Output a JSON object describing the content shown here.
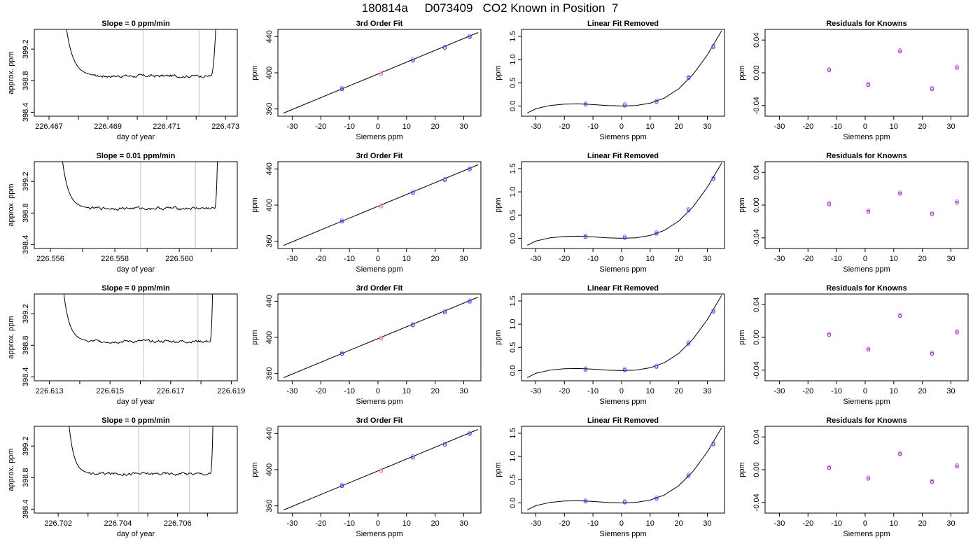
{
  "header": {
    "title": "180814a     D073409   CO2 Known in Position  7"
  },
  "chart_data": [
    {
      "type": "line",
      "panel": "timeseries",
      "title": "Slope =  0  ppm/min",
      "xlabel": "day of year",
      "ylabel": "approx. ppm",
      "xlim": [
        226.4665,
        226.4734
      ],
      "ylim": [
        398.35,
        399.45
      ],
      "xticks": [
        "226.467",
        "226.469",
        "226.471",
        "226.473"
      ],
      "xtick_values": [
        226.467,
        226.469,
        226.471,
        226.473
      ],
      "xminor": [
        226.468,
        226.47,
        226.472
      ],
      "yticks": [
        "398.4",
        "398.8",
        "399.2"
      ],
      "ytick_values": [
        398.4,
        398.8,
        399.2
      ],
      "vlines": [
        226.4702,
        226.4721
      ],
      "rise_start": 226.4675,
      "plateau_start": 226.4685,
      "plateau_end": 226.4725,
      "rise_end": 226.4727,
      "baseline": 398.86
    },
    {
      "type": "scatter",
      "panel": "fit",
      "title": "3rd Order Fit",
      "xlabel": "Siemens ppm",
      "ylabel": "ppm",
      "xlim": [
        -35,
        36
      ],
      "ylim": [
        352,
        448
      ],
      "xticks": [
        "-30",
        "-20",
        "-10",
        "0",
        "10",
        "20",
        "30"
      ],
      "xtick_values": [
        -30,
        -20,
        -10,
        0,
        10,
        20,
        30
      ],
      "yticks": [
        "360",
        "400",
        "440"
      ],
      "ytick_values": [
        360,
        400,
        440
      ],
      "points": [
        [
          -12.6,
          381.8
        ],
        [
          1.1,
          398.5
        ],
        [
          12.2,
          413.4
        ],
        [
          23.4,
          427.6
        ],
        [
          32.1,
          439.5
        ]
      ],
      "point_colors": [
        "#4040ff",
        "#ff66cc",
        "#4040ff",
        "#4040ff",
        "#4040ff"
      ],
      "line": [
        [
          -33,
          355.5
        ],
        [
          35,
          444.5
        ]
      ]
    },
    {
      "type": "scatter",
      "panel": "linear_removed",
      "title": "Linear Fit Removed",
      "xlabel": "Siemens ppm",
      "ylabel": "ppm",
      "xlim": [
        -35,
        36
      ],
      "ylim": [
        -0.22,
        1.65
      ],
      "xticks": [
        "-30",
        "-20",
        "-10",
        "0",
        "10",
        "20",
        "30"
      ],
      "xtick_values": [
        -30,
        -20,
        -10,
        0,
        10,
        20,
        30
      ],
      "yticks": [
        "0.0",
        "0.5",
        "1.0",
        "1.5"
      ],
      "ytick_values": [
        0,
        0.5,
        1.0,
        1.5
      ],
      "points": [
        [
          -12.6,
          0.03
        ],
        [
          1.1,
          0.01
        ],
        [
          12.2,
          0.09
        ],
        [
          23.4,
          0.6
        ],
        [
          32.1,
          1.27
        ]
      ],
      "curve": [
        [
          -33,
          -0.15
        ],
        [
          -30,
          -0.06
        ],
        [
          -25,
          0.01
        ],
        [
          -20,
          0.04
        ],
        [
          -15,
          0.045
        ],
        [
          -10,
          0.03
        ],
        [
          -5,
          0.01
        ],
        [
          0,
          0.0
        ],
        [
          5,
          0.01
        ],
        [
          10,
          0.06
        ],
        [
          15,
          0.17
        ],
        [
          20,
          0.37
        ],
        [
          25,
          0.68
        ],
        [
          30,
          1.1
        ],
        [
          35,
          1.62
        ]
      ]
    },
    {
      "type": "scatter",
      "panel": "residuals",
      "title": "Residuals for Knowns",
      "xlabel": "Siemens ppm",
      "ylabel": "ppm",
      "xlim": [
        -35,
        36
      ],
      "ylim": [
        -0.053,
        0.053
      ],
      "xticks": [
        "-30",
        "-20",
        "-10",
        "0",
        "10",
        "20",
        "30"
      ],
      "xtick_values": [
        -30,
        -20,
        -10,
        0,
        10,
        20,
        30
      ],
      "yticks": [
        "-0.04",
        "0.00",
        "0.04"
      ],
      "ytick_values": [
        -0.04,
        0,
        0.04
      ],
      "points": [
        [
          -12.6,
          0.003
        ],
        [
          1.1,
          -0.015
        ],
        [
          12.2,
          0.026
        ],
        [
          23.4,
          -0.02
        ],
        [
          32.1,
          0.006
        ]
      ]
    },
    {
      "type": "line",
      "panel": "timeseries",
      "title": "Slope =  0.01  ppm/min",
      "xlabel": "day of year",
      "ylabel": "approx. ppm",
      "xlim": [
        226.5555,
        226.5618
      ],
      "ylim": [
        398.35,
        399.45
      ],
      "xticks": [
        "226.556",
        "226.558",
        "226.560"
      ],
      "xtick_values": [
        226.556,
        226.558,
        226.56
      ],
      "xminor": [
        226.557,
        226.559,
        226.561
      ],
      "yticks": [
        "398.4",
        "398.8",
        "399.2"
      ],
      "ytick_values": [
        398.4,
        398.8,
        399.2
      ],
      "vlines": [
        226.5588,
        226.5605
      ],
      "rise_start": 226.5563,
      "plateau_start": 226.5571,
      "plateau_end": 226.5611,
      "rise_end": 226.5612,
      "baseline": 398.86
    },
    {
      "type": "scatter",
      "panel": "fit",
      "title": "3rd Order Fit",
      "xlabel": "Siemens ppm",
      "ylabel": "ppm",
      "xlim": [
        -35,
        36
      ],
      "ylim": [
        352,
        448
      ],
      "xticks": [
        "-30",
        "-20",
        "-10",
        "0",
        "10",
        "20",
        "30"
      ],
      "xtick_values": [
        -30,
        -20,
        -10,
        0,
        10,
        20,
        30
      ],
      "yticks": [
        "360",
        "400",
        "440"
      ],
      "ytick_values": [
        360,
        400,
        440
      ],
      "points": [
        [
          -12.6,
          381.8
        ],
        [
          1.1,
          398.5
        ],
        [
          12.2,
          413.4
        ],
        [
          23.4,
          427.6
        ],
        [
          32.1,
          439.5
        ]
      ],
      "point_colors": [
        "#4040ff",
        "#ff66cc",
        "#4040ff",
        "#4040ff",
        "#4040ff"
      ],
      "line": [
        [
          -33,
          355.5
        ],
        [
          35,
          444.5
        ]
      ]
    },
    {
      "type": "scatter",
      "panel": "linear_removed",
      "title": "Linear Fit Removed",
      "xlabel": "Siemens ppm",
      "ylabel": "ppm",
      "xlim": [
        -35,
        36
      ],
      "ylim": [
        -0.22,
        1.65
      ],
      "xticks": [
        "-30",
        "-20",
        "-10",
        "0",
        "10",
        "20",
        "30"
      ],
      "xtick_values": [
        -30,
        -20,
        -10,
        0,
        10,
        20,
        30
      ],
      "yticks": [
        "0.0",
        "0.5",
        "1.0",
        "1.5"
      ],
      "ytick_values": [
        0,
        0.5,
        1.0,
        1.5
      ],
      "points": [
        [
          -12.6,
          0.03
        ],
        [
          1.1,
          0.01
        ],
        [
          12.2,
          0.1
        ],
        [
          23.4,
          0.6
        ],
        [
          32.1,
          1.28
        ]
      ],
      "curve": [
        [
          -33,
          -0.15
        ],
        [
          -30,
          -0.06
        ],
        [
          -25,
          0.01
        ],
        [
          -20,
          0.04
        ],
        [
          -15,
          0.045
        ],
        [
          -10,
          0.03
        ],
        [
          -5,
          0.01
        ],
        [
          0,
          0.0
        ],
        [
          5,
          0.01
        ],
        [
          10,
          0.06
        ],
        [
          15,
          0.17
        ],
        [
          20,
          0.37
        ],
        [
          25,
          0.68
        ],
        [
          30,
          1.1
        ],
        [
          35,
          1.62
        ]
      ]
    },
    {
      "type": "scatter",
      "panel": "residuals",
      "title": "Residuals for Knowns",
      "xlabel": "Siemens ppm",
      "ylabel": "ppm",
      "xlim": [
        -35,
        36
      ],
      "ylim": [
        -0.053,
        0.053
      ],
      "xticks": [
        "-30",
        "-20",
        "-10",
        "0",
        "10",
        "20",
        "30"
      ],
      "xtick_values": [
        -30,
        -20,
        -10,
        0,
        10,
        20,
        30
      ],
      "yticks": [
        "-0.04",
        "0.00",
        "0.04"
      ],
      "ytick_values": [
        -0.04,
        0,
        0.04
      ],
      "points": [
        [
          -12.6,
          0.001
        ],
        [
          1.1,
          -0.008
        ],
        [
          12.2,
          0.014
        ],
        [
          23.4,
          -0.011
        ],
        [
          32.1,
          0.003
        ]
      ]
    },
    {
      "type": "line",
      "panel": "timeseries",
      "title": "Slope =  0  ppm/min",
      "xlabel": "day of year",
      "ylabel": "approx. ppm",
      "xlim": [
        226.6125,
        226.6192
      ],
      "ylim": [
        398.35,
        399.45
      ],
      "xticks": [
        "226.613",
        "226.615",
        "226.617",
        "226.619"
      ],
      "xtick_values": [
        226.613,
        226.615,
        226.617,
        226.619
      ],
      "xminor": [
        226.614,
        226.616,
        226.618
      ],
      "yticks": [
        "398.4",
        "398.8",
        "399.2"
      ],
      "ytick_values": [
        398.4,
        398.8,
        399.2
      ],
      "vlines": [
        226.6161,
        226.6179
      ],
      "rise_start": 226.6134,
      "plateau_start": 226.6142,
      "plateau_end": 226.6183,
      "rise_end": 226.6184,
      "baseline": 398.85
    },
    {
      "type": "scatter",
      "panel": "fit",
      "title": "3rd Order Fit",
      "xlabel": "Siemens ppm",
      "ylabel": "ppm",
      "xlim": [
        -35,
        36
      ],
      "ylim": [
        352,
        448
      ],
      "xticks": [
        "-30",
        "-20",
        "-10",
        "0",
        "10",
        "20",
        "30"
      ],
      "xtick_values": [
        -30,
        -20,
        -10,
        0,
        10,
        20,
        30
      ],
      "yticks": [
        "360",
        "400",
        "440"
      ],
      "ytick_values": [
        360,
        400,
        440
      ],
      "points": [
        [
          -12.6,
          381.8
        ],
        [
          1.1,
          398.5
        ],
        [
          12.2,
          413.4
        ],
        [
          23.4,
          427.6
        ],
        [
          32.1,
          439.5
        ]
      ],
      "point_colors": [
        "#4040ff",
        "#ff66cc",
        "#4040ff",
        "#4040ff",
        "#4040ff"
      ],
      "line": [
        [
          -33,
          355.5
        ],
        [
          35,
          444.5
        ]
      ]
    },
    {
      "type": "scatter",
      "panel": "linear_removed",
      "title": "Linear Fit Removed",
      "xlabel": "Siemens ppm",
      "ylabel": "ppm",
      "xlim": [
        -35,
        36
      ],
      "ylim": [
        -0.22,
        1.65
      ],
      "xticks": [
        "-30",
        "-20",
        "-10",
        "0",
        "10",
        "20",
        "30"
      ],
      "xtick_values": [
        -30,
        -20,
        -10,
        0,
        10,
        20,
        30
      ],
      "yticks": [
        "0.0",
        "0.5",
        "1.0",
        "1.5"
      ],
      "ytick_values": [
        0,
        0.5,
        1.0,
        1.5
      ],
      "points": [
        [
          -12.6,
          0.02
        ],
        [
          1.1,
          0.01
        ],
        [
          12.2,
          0.08
        ],
        [
          23.4,
          0.58
        ],
        [
          32.1,
          1.27
        ]
      ],
      "curve": [
        [
          -33,
          -0.15
        ],
        [
          -30,
          -0.06
        ],
        [
          -25,
          0.01
        ],
        [
          -20,
          0.04
        ],
        [
          -15,
          0.045
        ],
        [
          -10,
          0.03
        ],
        [
          -5,
          0.01
        ],
        [
          0,
          0.0
        ],
        [
          5,
          0.01
        ],
        [
          10,
          0.06
        ],
        [
          15,
          0.17
        ],
        [
          20,
          0.37
        ],
        [
          25,
          0.68
        ],
        [
          30,
          1.1
        ],
        [
          35,
          1.62
        ]
      ]
    },
    {
      "type": "scatter",
      "panel": "residuals",
      "title": "Residuals for Knowns",
      "xlabel": "Siemens ppm",
      "ylabel": "ppm",
      "xlim": [
        -35,
        36
      ],
      "ylim": [
        -0.053,
        0.053
      ],
      "xticks": [
        "-30",
        "-20",
        "-10",
        "0",
        "10",
        "20",
        "30"
      ],
      "xtick_values": [
        -30,
        -20,
        -10,
        0,
        10,
        20,
        30
      ],
      "yticks": [
        "-0.04",
        "0.00",
        "0.04"
      ],
      "ytick_values": [
        -0.04,
        0,
        0.04
      ],
      "points": [
        [
          -12.6,
          0.003
        ],
        [
          1.1,
          -0.015
        ],
        [
          12.2,
          0.026
        ],
        [
          23.4,
          -0.02
        ],
        [
          32.1,
          0.006
        ]
      ]
    },
    {
      "type": "line",
      "panel": "timeseries",
      "title": "Slope =  0  ppm/min",
      "xlabel": "day of year",
      "ylabel": "approx. ppm",
      "xlim": [
        226.7012,
        226.708
      ],
      "ylim": [
        398.35,
        399.45
      ],
      "xticks": [
        "226.702",
        "226.704",
        "226.706"
      ],
      "xtick_values": [
        226.702,
        226.704,
        226.706
      ],
      "xminor": [
        226.703,
        226.705,
        226.707
      ],
      "yticks": [
        "398.4",
        "398.8",
        "399.2"
      ],
      "ytick_values": [
        398.4,
        398.8,
        399.2
      ],
      "vlines": [
        226.7047,
        226.7064
      ],
      "rise_start": 226.7023,
      "plateau_start": 226.703,
      "plateau_end": 226.7071,
      "rise_end": 226.7072,
      "baseline": 398.85
    },
    {
      "type": "scatter",
      "panel": "fit",
      "title": "3rd Order Fit",
      "xlabel": "Siemens ppm",
      "ylabel": "ppm",
      "xlim": [
        -35,
        36
      ],
      "ylim": [
        352,
        448
      ],
      "xticks": [
        "-30",
        "-20",
        "-10",
        "0",
        "10",
        "20",
        "30"
      ],
      "xtick_values": [
        -30,
        -20,
        -10,
        0,
        10,
        20,
        30
      ],
      "yticks": [
        "360",
        "400",
        "440"
      ],
      "ytick_values": [
        360,
        400,
        440
      ],
      "points": [
        [
          -12.6,
          381.8
        ],
        [
          1.1,
          398.5
        ],
        [
          12.2,
          413.4
        ],
        [
          23.4,
          427.6
        ],
        [
          32.1,
          439.5
        ]
      ],
      "point_colors": [
        "#4040ff",
        "#ff66cc",
        "#4040ff",
        "#4040ff",
        "#4040ff"
      ],
      "line": [
        [
          -33,
          355.5
        ],
        [
          35,
          444.5
        ]
      ]
    },
    {
      "type": "scatter",
      "panel": "linear_removed",
      "title": "Linear Fit Removed",
      "xlabel": "Siemens ppm",
      "ylabel": "ppm",
      "xlim": [
        -35,
        36
      ],
      "ylim": [
        -0.22,
        1.65
      ],
      "xticks": [
        "-30",
        "-20",
        "-10",
        "0",
        "10",
        "20",
        "30"
      ],
      "xtick_values": [
        -30,
        -20,
        -10,
        0,
        10,
        20,
        30
      ],
      "yticks": [
        "0.0",
        "0.5",
        "1.0",
        "1.5"
      ],
      "ytick_values": [
        0,
        0.5,
        1.0,
        1.5
      ],
      "points": [
        [
          -12.6,
          0.03
        ],
        [
          1.1,
          0.01
        ],
        [
          12.2,
          0.09
        ],
        [
          23.4,
          0.58
        ],
        [
          32.1,
          1.26
        ]
      ],
      "curve": [
        [
          -33,
          -0.15
        ],
        [
          -30,
          -0.06
        ],
        [
          -25,
          0.01
        ],
        [
          -20,
          0.04
        ],
        [
          -15,
          0.045
        ],
        [
          -10,
          0.03
        ],
        [
          -5,
          0.01
        ],
        [
          0,
          0.0
        ],
        [
          5,
          0.01
        ],
        [
          10,
          0.06
        ],
        [
          15,
          0.17
        ],
        [
          20,
          0.37
        ],
        [
          25,
          0.68
        ],
        [
          30,
          1.1
        ],
        [
          35,
          1.62
        ]
      ]
    },
    {
      "type": "scatter",
      "panel": "residuals",
      "title": "Residuals for Knowns",
      "xlabel": "Siemens ppm",
      "ylabel": "ppm",
      "xlim": [
        -35,
        36
      ],
      "ylim": [
        -0.053,
        0.053
      ],
      "xticks": [
        "-30",
        "-20",
        "-10",
        "0",
        "10",
        "20",
        "30"
      ],
      "xtick_values": [
        -30,
        -20,
        -10,
        0,
        10,
        20,
        30
      ],
      "yticks": [
        "-0.04",
        "0.00",
        "0.04"
      ],
      "ytick_values": [
        -0.04,
        0,
        0.04
      ],
      "points": [
        [
          -12.6,
          0.002
        ],
        [
          1.1,
          -0.011
        ],
        [
          12.2,
          0.019
        ],
        [
          23.4,
          -0.015
        ],
        [
          32.1,
          0.004
        ]
      ]
    }
  ]
}
